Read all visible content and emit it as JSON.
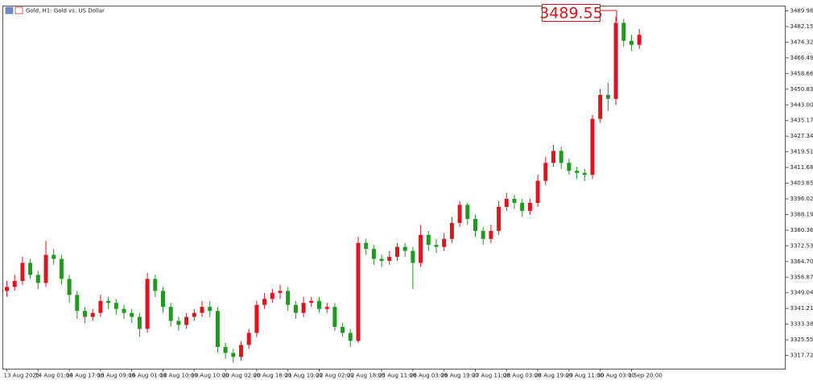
{
  "chart_data": {
    "type": "candlestick",
    "title": "Gold, H1:  Gold vs. US Dollar",
    "last_price": 3489.55,
    "up_color": "#e0141e",
    "down_color": "#1e9a1e",
    "categories": [
      "13 Aug 2025",
      null,
      null,
      null,
      "14 Aug 01:00",
      null,
      null,
      null,
      "14 Aug 17:00",
      null,
      null,
      null,
      "15 Aug 09:00",
      null,
      null,
      null,
      "16 Aug 01:00",
      null,
      null,
      null,
      "18 Aug 10:00",
      null,
      null,
      null,
      "19 Aug 10:00",
      null,
      null,
      null,
      "20 Aug 02:00",
      null,
      null,
      null,
      "20 Aug 18:00",
      null,
      null,
      null,
      "21 Aug 10:00",
      null,
      null,
      null,
      "22 Aug 02:00",
      null,
      null,
      null,
      "22 Aug 18:00",
      null,
      null,
      null,
      "25 Aug 11:00",
      null,
      null,
      null,
      "26 Aug 03:00",
      null,
      null,
      null,
      "26 Aug 19:00",
      null,
      null,
      null,
      "27 Aug 11:00",
      null,
      null,
      null,
      "28 Aug 03:00",
      null,
      null,
      null,
      "28 Aug 19:00",
      null,
      null,
      null,
      "29 Aug 11:00",
      null,
      null,
      null,
      "30 Aug 03:00",
      null,
      null,
      null,
      "1 Sep 20:00",
      null
    ],
    "open": [
      3350,
      3352,
      3355,
      3364,
      3358,
      3354,
      3368,
      3366,
      3356,
      3348,
      3340,
      3337,
      3339,
      3345,
      3344,
      3341,
      3339,
      3337,
      3331,
      3356,
      3350,
      3342,
      3335,
      3333,
      3337,
      3339,
      3342,
      3340,
      3322,
      3319,
      3317,
      3323,
      3329,
      3343,
      3346,
      3349,
      3350,
      3343,
      3339,
      3344,
      3345,
      3341,
      3342,
      3332,
      3329,
      3325,
      3374,
      3371,
      3366,
      3365,
      3367,
      3372,
      3370,
      3364,
      3378,
      3373,
      3372,
      3376,
      3384,
      3393,
      3386,
      3380,
      3376,
      3380,
      3392,
      3396,
      3394,
      3390,
      3394,
      3405,
      3414,
      3420,
      3414,
      3410,
      3409,
      3408,
      3436,
      3448,
      3446,
      3484,
      3475,
      3473
    ],
    "high": [
      3355,
      3358,
      3367,
      3366,
      3360,
      3375,
      3371,
      3368,
      3358,
      3350,
      3342,
      3341,
      3348,
      3347,
      3346,
      3343,
      3341,
      3339,
      3359,
      3358,
      3352,
      3344,
      3337,
      3339,
      3341,
      3345,
      3345,
      3342,
      3324,
      3321,
      3325,
      3331,
      3345,
      3349,
      3351,
      3353,
      3352,
      3345,
      3347,
      3347,
      3347,
      3344,
      3344,
      3334,
      3331,
      3377,
      3376,
      3373,
      3368,
      3370,
      3374,
      3374,
      3372,
      3383,
      3380,
      3376,
      3379,
      3387,
      3395,
      3394,
      3388,
      3382,
      3383,
      3395,
      3399,
      3398,
      3396,
      3396,
      3408,
      3417,
      3423,
      3422,
      3416,
      3412,
      3411,
      3438,
      3451,
      3454,
      3487,
      3486,
      3478,
      3481
    ],
    "low": [
      3347,
      3350,
      3353,
      3356,
      3351,
      3352,
      3363,
      3353,
      3344,
      3336,
      3334,
      3335,
      3337,
      3341,
      3338,
      3336,
      3334,
      3327,
      3329,
      3347,
      3339,
      3332,
      3330,
      3331,
      3335,
      3337,
      3337,
      3319,
      3316,
      3314,
      3315,
      3321,
      3327,
      3341,
      3344,
      3346,
      3340,
      3336,
      3337,
      3342,
      3339,
      3339,
      3330,
      3327,
      3322,
      3324,
      3368,
      3363,
      3362,
      3363,
      3365,
      3367,
      3351,
      3362,
      3370,
      3369,
      3370,
      3374,
      3382,
      3383,
      3377,
      3373,
      3374,
      3378,
      3390,
      3391,
      3387,
      3388,
      3392,
      3403,
      3412,
      3411,
      3408,
      3406,
      3405,
      3406,
      3434,
      3440,
      3443,
      3472,
      3470,
      3471
    ],
    "close": [
      3352,
      3355,
      3364,
      3358,
      3354,
      3368,
      3366,
      3356,
      3348,
      3340,
      3337,
      3339,
      3345,
      3344,
      3341,
      3339,
      3337,
      3331,
      3356,
      3350,
      3342,
      3335,
      3333,
      3337,
      3339,
      3342,
      3340,
      3322,
      3319,
      3317,
      3323,
      3329,
      3343,
      3346,
      3349,
      3350,
      3343,
      3339,
      3344,
      3345,
      3341,
      3342,
      3332,
      3329,
      3325,
      3374,
      3371,
      3366,
      3365,
      3367,
      3372,
      3370,
      3364,
      3378,
      3373,
      3372,
      3376,
      3384,
      3393,
      3386,
      3380,
      3376,
      3380,
      3392,
      3396,
      3394,
      3390,
      3394,
      3405,
      3414,
      3420,
      3414,
      3410,
      3409,
      3408,
      3436,
      3448,
      3446,
      3484,
      3475,
      3473,
      3478
    ],
    "ylim": [
      3310.9,
      3492.4
    ],
    "yticks": [
      3489.98,
      3482.15,
      3474.32,
      3466.49,
      3458.66,
      3450.83,
      {
        "value": 3443,
        "label": "3443.00"
      },
      3435.17,
      3427.34,
      3419.51,
      3411.68,
      3403.85,
      3396.02,
      3388.19,
      3380.36,
      3372.53,
      {
        "value": 3364.7,
        "label": "3364.70"
      },
      3356.87,
      3349.04,
      3341.21,
      3333.38,
      3325.55,
      3317.72
    ]
  }
}
